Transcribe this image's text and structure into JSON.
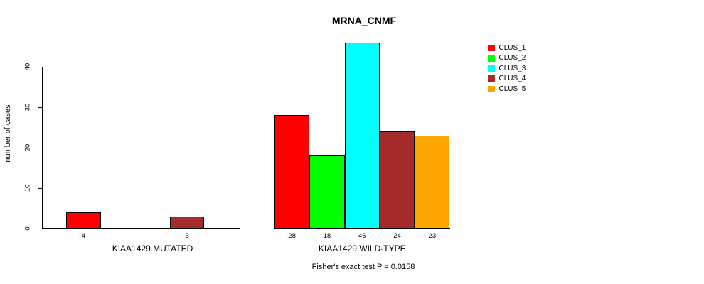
{
  "title": "MRNA_CNMF",
  "subtitle": "Fisher's exact test P = 0.0158",
  "ylabel": "number of cases",
  "legend": {
    "items": [
      {
        "label": "CLUS_1",
        "color": "#ff0000"
      },
      {
        "label": "CLUS_2",
        "color": "#00ff00"
      },
      {
        "label": "CLUS_3",
        "color": "#00ffff"
      },
      {
        "label": "CLUS_4",
        "color": "#a52a2a"
      },
      {
        "label": "CLUS_5",
        "color": "#ffa500"
      }
    ]
  },
  "chart_data": {
    "type": "bar",
    "title": "MRNA_CNMF",
    "ylabel": "number of cases",
    "xlabel": "",
    "ylim": [
      0,
      46
    ],
    "yticks": [
      0,
      10,
      20,
      30,
      40
    ],
    "grid": false,
    "legend_position": "top-right",
    "series_labels": [
      "CLUS_1",
      "CLUS_2",
      "CLUS_3",
      "CLUS_4",
      "CLUS_5"
    ],
    "series_colors": [
      "#ff0000",
      "#00ff00",
      "#00ffff",
      "#a52a2a",
      "#ffa500"
    ],
    "groups": [
      {
        "label": "KIAA1429 MUTATED",
        "values": [
          4,
          0,
          0,
          3,
          0
        ]
      },
      {
        "label": "KIAA1429 WILD-TYPE",
        "values": [
          28,
          18,
          46,
          24,
          23
        ]
      }
    ],
    "value_labels": {
      "group_1": [
        "4",
        "3"
      ],
      "group_2": [
        "28",
        "18",
        "46",
        "24",
        "23"
      ],
      "note": "labels shown under non-zero bars only"
    },
    "annotation": "Fisher's exact test P = 0.0158"
  }
}
